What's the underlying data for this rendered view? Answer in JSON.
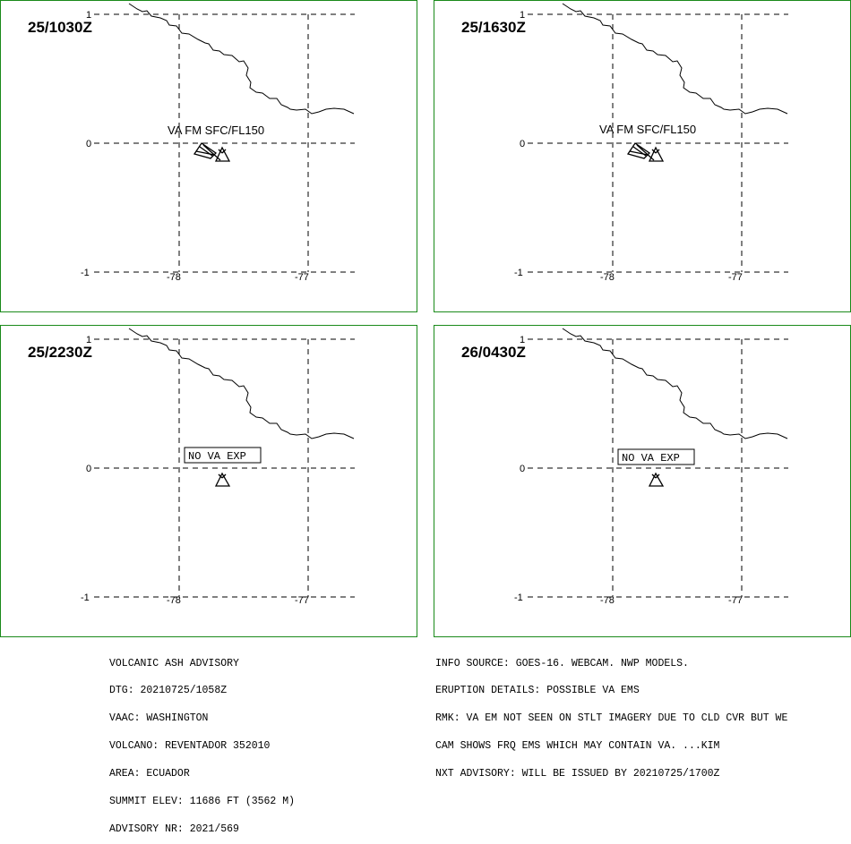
{
  "panels": [
    {
      "time": "25/1030Z",
      "ticks": {
        "lat_top": "1",
        "lat_mid": "0",
        "lat_bot": "-1",
        "lon_left": "-78",
        "lon_right": "-77"
      },
      "label": "VA FM SFC/FL150",
      "type": "plume"
    },
    {
      "time": "25/1630Z",
      "ticks": {
        "lat_top": "1",
        "lat_mid": "0",
        "lat_bot": "-1",
        "lon_left": "-78",
        "lon_right": "-77"
      },
      "label": "VA FM SFC/FL150",
      "type": "plume"
    },
    {
      "time": "25/2230Z",
      "ticks": {
        "lat_top": "1",
        "lat_mid": "0",
        "lat_bot": "-1",
        "lon_left": "-78",
        "lon_right": "-77"
      },
      "label": "NO VA EXP",
      "type": "none"
    },
    {
      "time": "26/0430Z",
      "ticks": {
        "lat_top": "1",
        "lat_mid": "0",
        "lat_bot": "-1",
        "lon_left": "-78",
        "lon_right": "-77"
      },
      "label": "NO VA EXP",
      "type": "none"
    }
  ],
  "advisory_left": [
    "VOLCANIC ASH ADVISORY",
    "DTG: 20210725/1058Z",
    "VAAC: WASHINGTON",
    "VOLCANO: REVENTADOR 352010",
    "AREA: ECUADOR",
    "SUMMIT ELEV: 11686 FT (3562 M)",
    "ADVISORY NR: 2021/569"
  ],
  "advisory_right": [
    "INFO SOURCE: GOES-16. WEBCAM. NWP MODELS.",
    "ERUPTION DETAILS: POSSIBLE VA EMS",
    "RMK: VA EM NOT SEEN ON STLT IMAGERY DUE TO CLD CVR BUT WE",
    "CAM SHOWS FRQ EMS WHICH MAY CONTAIN VA. ...KIM",
    "NXT ADVISORY: WILL BE ISSUED BY 20210725/1700Z"
  ],
  "colors": {
    "panel_border": "#1a8a1a",
    "lines": "#000000"
  }
}
